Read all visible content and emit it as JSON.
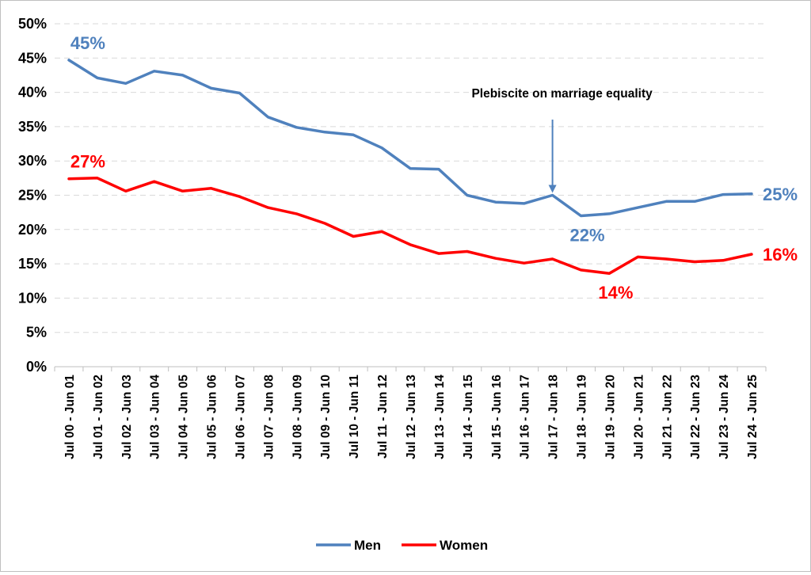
{
  "chart_data": {
    "type": "line",
    "categories": [
      "Jul 00 - Jun 01",
      "Jul 01 - Jun 02",
      "Jul 02 - Jun 03",
      "Jul 03 - Jun 04",
      "Jul 04 - Jun 05",
      "Jul 05 - Jun 06",
      "Jul 06 - Jun 07",
      "Jul 07 - Jun 08",
      "Jul 08 - Jun 09",
      "Jul 09 - Jun 10",
      "Jul 10 - Jun 11",
      "Jul 11 - Jun 12",
      "Jul 12 - Jun 13",
      "Jul 13 - Jun 14",
      "Jul 14 - Jun 15",
      "Jul 15 - Jun 16",
      "Jul 16 - Jun 17",
      "Jul 17 - Jun 18",
      "Jul 18 - Jun 19",
      "Jul 19 - Jun 20",
      "Jul 20 - Jun 21",
      "Jul 21 - Jun 22",
      "Jul 22 - Jun 23",
      "Jul 23 - Jun 24",
      "Jul 24 - Jun 25"
    ],
    "series": [
      {
        "name": "Men",
        "color": "#4f81bd",
        "values": [
          44.7,
          42.1,
          41.3,
          43.1,
          42.5,
          40.6,
          39.9,
          36.4,
          34.9,
          34.2,
          33.8,
          31.9,
          28.9,
          28.8,
          25.0,
          24.0,
          23.8,
          25.0,
          22.0,
          22.3,
          23.2,
          24.1,
          24.1,
          25.1,
          25.2
        ]
      },
      {
        "name": "Women",
        "color": "#ff0000",
        "values": [
          27.4,
          27.5,
          25.6,
          27.0,
          25.6,
          26.0,
          24.8,
          23.2,
          22.3,
          20.9,
          19.0,
          19.7,
          17.8,
          16.5,
          16.8,
          15.8,
          15.1,
          15.7,
          14.1,
          13.6,
          16.0,
          15.7,
          15.3,
          15.5,
          16.4
        ]
      }
    ],
    "ylim": [
      0,
      50
    ],
    "yticks": [
      "0%",
      "5%",
      "10%",
      "15%",
      "20%",
      "25%",
      "30%",
      "35%",
      "40%",
      "45%",
      "50%"
    ],
    "grid": true,
    "legend": {
      "position": "bottom",
      "entries": [
        "Men",
        "Women"
      ]
    },
    "data_labels": [
      {
        "series": "Men",
        "index": 0,
        "text": "45%"
      },
      {
        "series": "Men",
        "index": 18,
        "text": "22%"
      },
      {
        "series": "Men",
        "index": 24,
        "text": "25%"
      },
      {
        "series": "Women",
        "index": 0,
        "text": "27%"
      },
      {
        "series": "Women",
        "index": 19,
        "text": "14%"
      },
      {
        "series": "Women",
        "index": 24,
        "text": "16%"
      }
    ],
    "annotation": {
      "text": "Plebiscite on marriage equality",
      "index": 17
    }
  }
}
